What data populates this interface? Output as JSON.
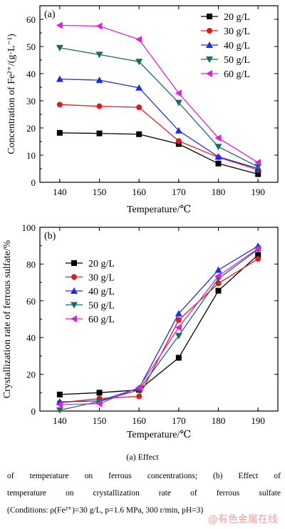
{
  "chart_data": [
    {
      "type": "line",
      "panel_label": "(a)",
      "x": [
        140,
        150,
        160,
        170,
        180,
        190
      ],
      "xlabel": "Temperature/℃",
      "ylabel": "Concentration of Fe²⁺/(g·L⁻¹)",
      "xlim": [
        135,
        195
      ],
      "ylim": [
        0,
        65
      ],
      "yticks": [
        0,
        10,
        20,
        30,
        40,
        50,
        60
      ],
      "legend_position": "top-right",
      "series": [
        {
          "name": "20 g/L",
          "color": "#000000",
          "marker": "square",
          "values": [
            18.2,
            18.0,
            17.7,
            14.1,
            6.9,
            3.0
          ]
        },
        {
          "name": "30 g/L",
          "color": "#e31a1c",
          "marker": "circle",
          "values": [
            28.6,
            28.0,
            27.6,
            15.2,
            9.2,
            4.6
          ]
        },
        {
          "name": "40 g/L",
          "color": "#1f2de0",
          "marker": "triangle-up",
          "values": [
            38.0,
            37.6,
            34.8,
            19.0,
            9.4,
            5.1
          ]
        },
        {
          "name": "50 g/L",
          "color": "#1b6b5e",
          "marker": "triangle-down",
          "values": [
            49.5,
            47.0,
            44.4,
            29.3,
            13.1,
            5.7
          ]
        },
        {
          "name": "60 g/L",
          "color": "#e01ee0",
          "marker": "triangle-left",
          "values": [
            57.8,
            57.5,
            52.6,
            32.8,
            16.3,
            7.3
          ]
        }
      ]
    },
    {
      "type": "line",
      "panel_label": "(b)",
      "x": [
        140,
        150,
        160,
        170,
        180,
        190
      ],
      "xlabel": "Temperature/℃",
      "ylabel": "Crystallization rate of ferrous sulfate/%",
      "xlim": [
        135,
        195
      ],
      "ylim": [
        0,
        100
      ],
      "yticks": [
        0,
        20,
        40,
        60,
        80,
        100
      ],
      "legend_position": "top-left",
      "series": [
        {
          "name": "20 g/L",
          "color": "#000000",
          "marker": "square",
          "values": [
            9.0,
            10.0,
            11.5,
            29.0,
            65.5,
            85.0
          ]
        },
        {
          "name": "30 g/L",
          "color": "#e31a1c",
          "marker": "circle",
          "values": [
            4.5,
            6.8,
            8.0,
            49.5,
            69.5,
            82.8
          ]
        },
        {
          "name": "40 g/L",
          "color": "#1f2de0",
          "marker": "triangle-up",
          "values": [
            5.0,
            5.5,
            12.5,
            53.0,
            76.8,
            89.8
          ]
        },
        {
          "name": "50 g/L",
          "color": "#1b6b5e",
          "marker": "triangle-down",
          "values": [
            0.5,
            5.2,
            11.5,
            41.0,
            72.0,
            88.0
          ]
        },
        {
          "name": "60 g/L",
          "color": "#e01ee0",
          "marker": "triangle-left",
          "values": [
            3.5,
            4.0,
            12.8,
            45.5,
            73.5,
            88.5
          ]
        }
      ]
    }
  ],
  "caption": {
    "sub": "(a) Effect",
    "line1": "of temperature on ferrous concentrations; (b) Effect of",
    "line2": "temperature on crystallization rate of ferrous sulfate",
    "line3": "(Conditions: ρ(Fe²⁺)=30 g/L, p=1.6 MPa, 300 r/min, pH=3)"
  },
  "watermark": "@有色金属在线"
}
